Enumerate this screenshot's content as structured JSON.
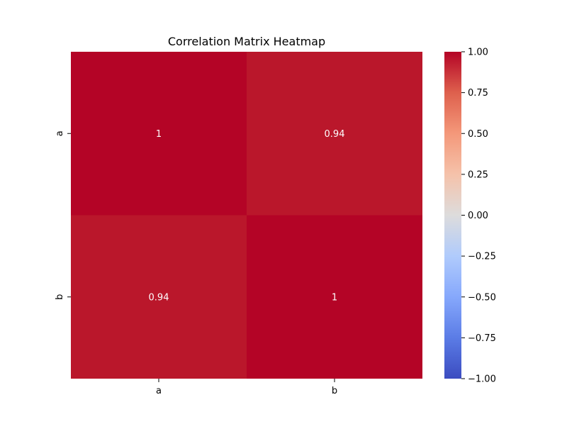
{
  "chart_data": {
    "type": "heatmap",
    "title": "Correlation Matrix Heatmap",
    "xlabel": "",
    "ylabel": "",
    "x_categories": [
      "a",
      "b"
    ],
    "y_categories": [
      "a",
      "b"
    ],
    "values": [
      [
        1.0,
        0.94
      ],
      [
        0.94,
        1.0
      ]
    ],
    "annotations": [
      [
        "1",
        "0.94"
      ],
      [
        "0.94",
        "1"
      ]
    ],
    "colormap": "coolwarm",
    "colorbar": {
      "range": [
        -1.0,
        1.0
      ],
      "ticks": [
        1.0,
        0.75,
        0.5,
        0.25,
        0.0,
        -0.25,
        -0.5,
        -0.75,
        -1.0
      ],
      "tick_labels": [
        "1.00",
        "0.75",
        "0.50",
        "0.25",
        "0.00",
        "−0.25",
        "−0.50",
        "−0.75",
        "−1.00"
      ]
    }
  }
}
